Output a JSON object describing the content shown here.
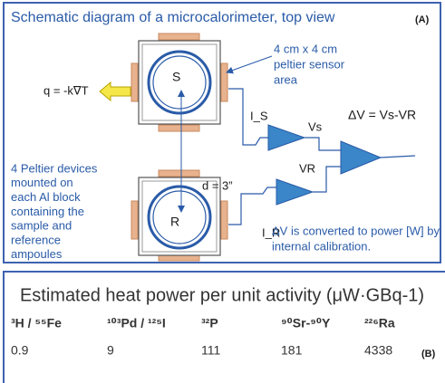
{
  "panel_a": {
    "title": "Schematic diagram of a microcalorimeter, top view",
    "tag": "(A)",
    "sensor_note": [
      "4 cm x 4 cm",
      "peltier sensor",
      "area"
    ],
    "heat_flow": "q = -k∇T",
    "sample": "S",
    "reference": "R",
    "distance": "d = 3”",
    "current_s": "I_S",
    "voltage_s": "Vs",
    "delta_v": "ΔV = Vs-VR",
    "voltage_r": "VR",
    "current_r": "I_R",
    "devices_note": [
      "4 Peltier devices",
      "mounted on",
      "each Al block",
      "containing the",
      "sample and",
      "reference",
      "ampoules"
    ],
    "conversion_note": [
      "ΔV is converted to power [W] by",
      "internal calibration."
    ]
  },
  "panel_b": {
    "title": "Estimated heat power per unit activity (μW·GBq-1)",
    "tag": "(B)",
    "table": {
      "header": [
        "³H / ⁵⁵Fe",
        "¹⁰³Pd / ¹²⁵I",
        "³²P",
        "⁹⁰Sr-⁹⁰Y",
        "²²⁶Ra"
      ],
      "rows": [
        [
          0.9,
          9,
          111,
          181,
          4338
        ]
      ]
    }
  }
}
